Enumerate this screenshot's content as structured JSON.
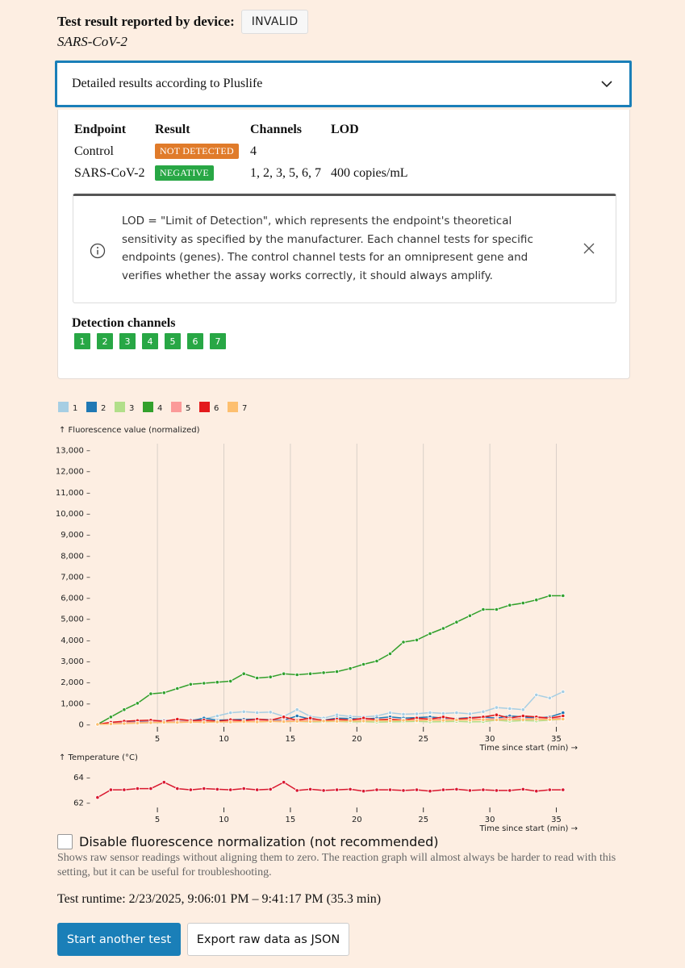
{
  "header": {
    "result_label": "Test result reported by device",
    "colon": ":",
    "result_value": "INVALID",
    "pathogen": "SARS-CoV-2"
  },
  "accordion": {
    "title": "Detailed results according to Pluslife"
  },
  "endpoints_table": {
    "headers": [
      "Endpoint",
      "Result",
      "Channels",
      "LOD"
    ],
    "rows": [
      {
        "endpoint": "Control",
        "result": "NOT DETECTED",
        "result_color": "#e07b2a",
        "channels": "4",
        "lod": ""
      },
      {
        "endpoint": "SARS-CoV-2",
        "result": "NEGATIVE",
        "result_color": "#28a745",
        "channels": "1, 2, 3, 5, 6, 7",
        "lod": "400 copies/mL"
      }
    ]
  },
  "info_box": {
    "text": "LOD = \"Limit of Detection\", which represents the endpoint's theoretical sensitivity as specified by the manufacturer. Each channel tests for specific endpoints (genes). The control channel tests for an omnipresent gene and verifies whether the assay works correctly, it should always amplify.",
    "icon": "info-icon",
    "close_icon": "close-icon"
  },
  "detection": {
    "title": "Detection channels",
    "channels": [
      "1",
      "2",
      "3",
      "4",
      "5",
      "6",
      "7"
    ],
    "chip_color": "#28a745"
  },
  "chart_data": [
    {
      "type": "line",
      "ylabel": "↑ Fluorescence value (normalized)",
      "xlabel": "Time since start (min) →",
      "xlim": [
        0.2,
        36
      ],
      "ylim": [
        0,
        13000
      ],
      "x_ticks": [
        5,
        10,
        15,
        20,
        25,
        30,
        35
      ],
      "y_ticks": [
        0,
        1000,
        2000,
        3000,
        4000,
        5000,
        6000,
        7000,
        8000,
        9000,
        10000,
        11000,
        12000,
        13000
      ],
      "y_tick_labels": [
        "0",
        "1,000",
        "2,000",
        "3,000",
        "4,000",
        "5,000",
        "6,000",
        "7,000",
        "8,000",
        "9,000",
        "10,000",
        "11,000",
        "12,000",
        "13,000"
      ],
      "x_grid": true,
      "legend": "top-left",
      "x": [
        0.5,
        1.5,
        2.5,
        3.5,
        4.5,
        5.5,
        6.5,
        7.5,
        8.5,
        9.5,
        10.5,
        11.5,
        12.5,
        13.5,
        14.5,
        15.5,
        16.5,
        17.5,
        18.5,
        19.5,
        20.5,
        21.5,
        22.5,
        23.5,
        24.5,
        25.5,
        26.5,
        27.5,
        28.5,
        29.5,
        30.5,
        31.5,
        32.5,
        33.5,
        34.5,
        35.5
      ],
      "series": [
        {
          "name": "1",
          "color": "#a6cee3",
          "values": [
            0,
            40,
            80,
            120,
            160,
            200,
            150,
            220,
            250,
            400,
            550,
            600,
            560,
            580,
            380,
            700,
            380,
            300,
            450,
            380,
            350,
            400,
            550,
            480,
            500,
            560,
            520,
            550,
            500,
            600,
            800,
            750,
            700,
            1400,
            1250,
            1550
          ]
        },
        {
          "name": "2",
          "color": "#1f78b4",
          "values": [
            0,
            60,
            90,
            130,
            120,
            100,
            140,
            160,
            300,
            200,
            220,
            240,
            250,
            220,
            200,
            400,
            250,
            200,
            300,
            280,
            250,
            300,
            350,
            300,
            320,
            350,
            300,
            280,
            320,
            350,
            300,
            400,
            350,
            300,
            350,
            550
          ]
        },
        {
          "name": "3",
          "color": "#b2df8a",
          "values": [
            0,
            30,
            50,
            70,
            80,
            90,
            100,
            110,
            100,
            120,
            130,
            140,
            120,
            150,
            130,
            140,
            120,
            130,
            140,
            120,
            130,
            110,
            120,
            130,
            140,
            120,
            130,
            140,
            120,
            130,
            200,
            150,
            180,
            160,
            200,
            250
          ]
        },
        {
          "name": "4",
          "color": "#33a02c",
          "values": [
            0,
            350,
            700,
            1000,
            1450,
            1500,
            1700,
            1900,
            1950,
            2000,
            2050,
            2400,
            2200,
            2250,
            2400,
            2350,
            2400,
            2450,
            2500,
            2650,
            2850,
            3000,
            3350,
            3900,
            4000,
            4300,
            4550,
            4850,
            5150,
            5450,
            5450,
            5650,
            5750,
            5900,
            6100,
            6100
          ]
        },
        {
          "name": "5",
          "color": "#fb9a99",
          "values": [
            0,
            50,
            80,
            100,
            120,
            130,
            150,
            140,
            160,
            150,
            170,
            160,
            180,
            170,
            190,
            180,
            200,
            190,
            210,
            200,
            220,
            210,
            230,
            220,
            240,
            230,
            250,
            240,
            260,
            250,
            270,
            260,
            280,
            270,
            290,
            300
          ]
        },
        {
          "name": "6",
          "color": "#e31a1c",
          "values": [
            0,
            100,
            150,
            180,
            200,
            150,
            250,
            180,
            200,
            150,
            220,
            180,
            250,
            200,
            350,
            200,
            300,
            180,
            250,
            200,
            300,
            220,
            250,
            200,
            300,
            250,
            350,
            250,
            300,
            350,
            450,
            300,
            400,
            350,
            300,
            400
          ]
        },
        {
          "name": "7",
          "color": "#fdbf6f",
          "values": [
            0,
            20,
            40,
            60,
            80,
            100,
            90,
            110,
            100,
            120,
            110,
            130,
            120,
            140,
            130,
            150,
            140,
            160,
            150,
            170,
            160,
            180,
            170,
            190,
            180,
            200,
            190,
            210,
            200,
            220,
            210,
            230,
            220,
            240,
            230,
            250
          ]
        }
      ]
    },
    {
      "type": "line",
      "ylabel": "↑ Temperature (°C)",
      "xlabel": "Time since start (min) →",
      "xlim": [
        0.2,
        36
      ],
      "ylim": [
        61.8,
        64.6
      ],
      "x_ticks": [
        5,
        10,
        15,
        20,
        25,
        30,
        35
      ],
      "y_ticks": [
        62,
        64
      ],
      "y_tick_labels": [
        "62",
        "64"
      ],
      "x_grid": false,
      "x": [
        0.5,
        1.5,
        2.5,
        3.5,
        4.5,
        5.5,
        6.5,
        7.5,
        8.5,
        9.5,
        10.5,
        11.5,
        12.5,
        13.5,
        14.5,
        15.5,
        16.5,
        17.5,
        18.5,
        19.5,
        20.5,
        21.5,
        22.5,
        23.5,
        24.5,
        25.5,
        26.5,
        27.5,
        28.5,
        29.5,
        30.5,
        31.5,
        32.5,
        33.5,
        34.5,
        35.5
      ],
      "series": [
        {
          "name": "Temperature",
          "color": "#d9182f",
          "values": [
            62.4,
            63.0,
            63.0,
            63.1,
            63.1,
            63.6,
            63.1,
            63.0,
            63.1,
            63.05,
            63.0,
            63.1,
            63.0,
            63.05,
            63.6,
            62.95,
            63.05,
            62.95,
            63.0,
            63.05,
            62.9,
            63.0,
            63.0,
            62.95,
            63.0,
            62.9,
            63.0,
            63.05,
            62.95,
            63.0,
            62.95,
            62.95,
            63.05,
            62.9,
            63.0,
            63.0
          ]
        }
      ]
    }
  ],
  "normalization": {
    "label": "Disable fluorescence normalization (not recommended)",
    "help": "Shows raw sensor readings without aligning them to zero. The reaction graph will almost always be harder to read with this setting, but it can be useful for troubleshooting."
  },
  "runtime": {
    "text": "Test runtime: 2/23/2025, 9:06:01 PM – 9:41:17 PM (35.3 min)"
  },
  "buttons": {
    "start": "Start another test",
    "export": "Export raw data as JSON"
  }
}
